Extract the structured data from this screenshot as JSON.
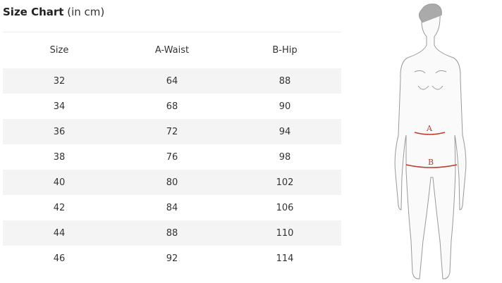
{
  "title": {
    "main": "Size Chart",
    "sub": "(in cm)"
  },
  "table": {
    "headers": [
      "Size",
      "A-Waist",
      "B-Hip"
    ],
    "rows": [
      [
        "32",
        "64",
        "88"
      ],
      [
        "34",
        "68",
        "90"
      ],
      [
        "36",
        "72",
        "94"
      ],
      [
        "38",
        "76",
        "98"
      ],
      [
        "40",
        "80",
        "102"
      ],
      [
        "42",
        "84",
        "106"
      ],
      [
        "44",
        "88",
        "110"
      ],
      [
        "46",
        "92",
        "114"
      ]
    ]
  },
  "figure": {
    "label_a": "A",
    "label_b": "B",
    "accent": "#c0392b"
  }
}
